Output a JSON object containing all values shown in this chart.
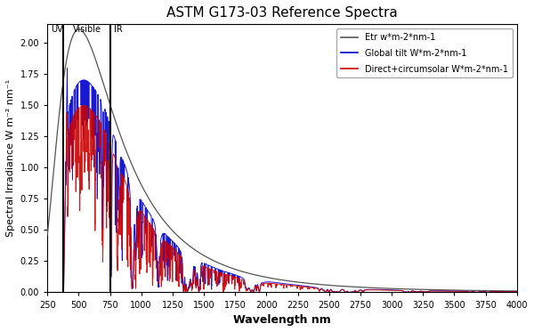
{
  "title": "ASTM G173-03 Reference Spectra",
  "xlabel": "Wavelength nm",
  "ylabel": "Spectral Irradiance W m⁻² nm⁻¹",
  "xlim": [
    250,
    4000
  ],
  "ylim": [
    0,
    2.15
  ],
  "yticks": [
    0.0,
    0.25,
    0.5,
    0.75,
    1.0,
    1.25,
    1.5,
    1.75,
    2.0
  ],
  "xticks": [
    250,
    500,
    750,
    1000,
    1250,
    1500,
    1750,
    2000,
    2250,
    2500,
    2750,
    3000,
    3250,
    3500,
    3750,
    4000
  ],
  "uv_line": 380,
  "vis_line": 750,
  "uv_label": "UV",
  "vis_label": "Visible",
  "ir_label": "IR",
  "legend_labels": [
    "Etr w*m-2*nm-1",
    "Global tilt W*m-2*nm-1",
    "Direct+circumsolar W*m-2*nm-1"
  ],
  "etr_color": "#555555",
  "global_color": "#0000cc",
  "direct_color": "#cc0000",
  "background_color": "#ffffff",
  "title_fontsize": 11,
  "axis_label_fontsize": 9,
  "tick_fontsize": 8
}
